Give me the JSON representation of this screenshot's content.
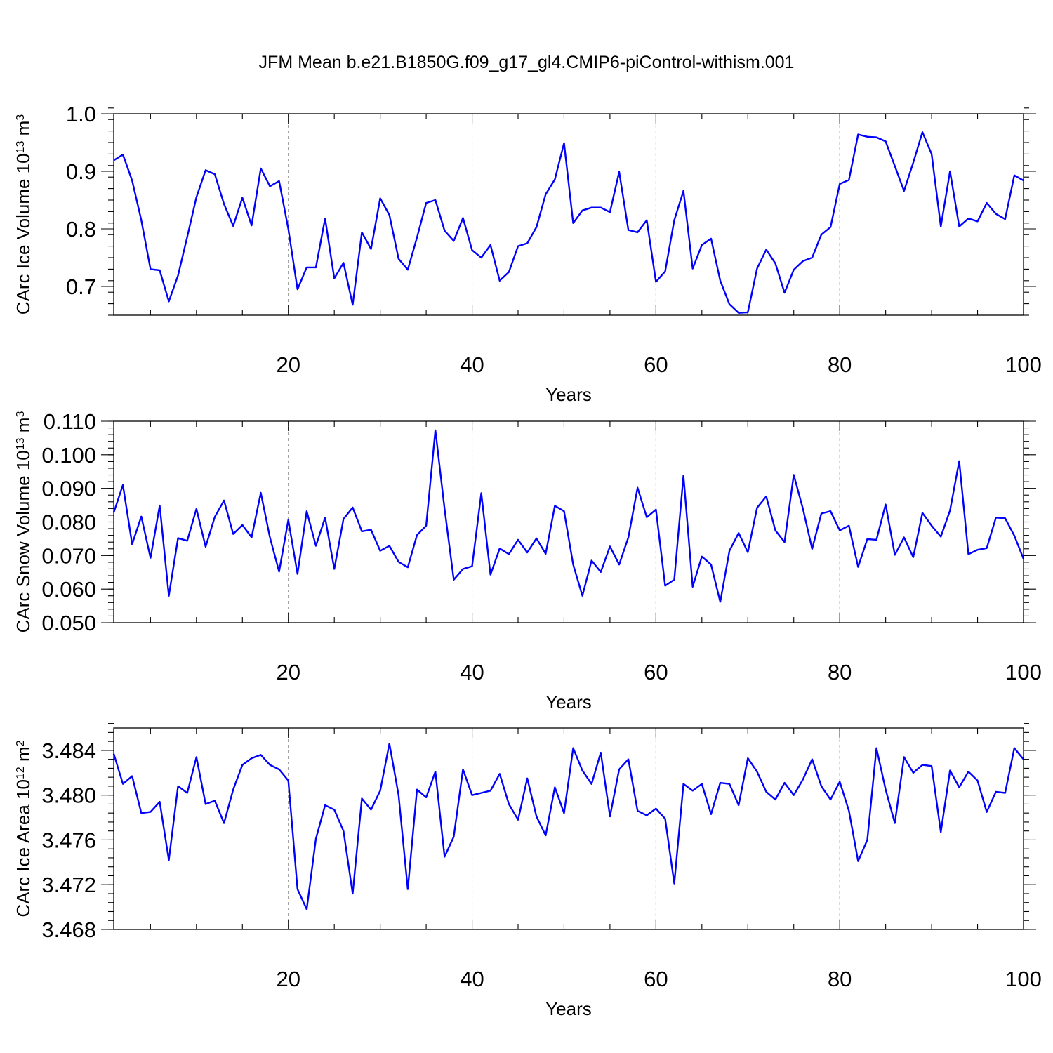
{
  "title": "JFM Mean b.e21.B1850G.f09_g17_gl4.CMIP6-piControl-withism.001",
  "chart_data": [
    {
      "type": "line",
      "xlabel": "Years",
      "ylabel": "CArc Ice Volume 10",
      "ylabel_exp": "13",
      "ylabel_unit": " m",
      "ylabel_unit_exp": "3",
      "xlim": [
        1,
        100
      ],
      "ylim": [
        0.65,
        1.0
      ],
      "xticks": [
        20,
        40,
        60,
        80,
        100
      ],
      "xtick_labels": [
        "20",
        "40",
        "60",
        "80",
        "100"
      ],
      "yticks": [
        0.7,
        0.8,
        0.9,
        1.0
      ],
      "ytick_labels": [
        "0.7",
        "0.8",
        "0.9",
        "1.0"
      ],
      "y_minor_step": 0.02,
      "grid": "vertical dashed at 20, 40, 60, 80",
      "color": "#0000ff",
      "x": [
        1,
        2,
        3,
        4,
        5,
        6,
        7,
        8,
        9,
        10,
        11,
        12,
        13,
        14,
        15,
        16,
        17,
        18,
        19,
        20,
        21,
        22,
        23,
        24,
        25,
        26,
        27,
        28,
        29,
        30,
        31,
        32,
        33,
        34,
        35,
        36,
        37,
        38,
        39,
        40,
        41,
        42,
        43,
        44,
        45,
        46,
        47,
        48,
        49,
        50,
        51,
        52,
        53,
        54,
        55,
        56,
        57,
        58,
        59,
        60,
        61,
        62,
        63,
        64,
        65,
        66,
        67,
        68,
        69,
        70,
        71,
        72,
        73,
        74,
        75,
        76,
        77,
        78,
        79,
        80,
        81,
        82,
        83,
        84,
        85,
        86,
        87,
        88,
        89,
        90,
        91,
        92,
        93,
        94,
        95,
        96,
        97,
        98,
        99,
        100
      ],
      "values": [
        0.919,
        0.929,
        0.884,
        0.815,
        0.73,
        0.728,
        0.674,
        0.719,
        0.786,
        0.855,
        0.902,
        0.895,
        0.843,
        0.805,
        0.854,
        0.806,
        0.905,
        0.874,
        0.883,
        0.8,
        0.695,
        0.733,
        0.733,
        0.818,
        0.714,
        0.741,
        0.668,
        0.794,
        0.765,
        0.853,
        0.824,
        0.748,
        0.729,
        0.785,
        0.845,
        0.85,
        0.797,
        0.779,
        0.819,
        0.763,
        0.75,
        0.772,
        0.71,
        0.725,
        0.77,
        0.775,
        0.803,
        0.86,
        0.886,
        0.949,
        0.81,
        0.832,
        0.837,
        0.837,
        0.829,
        0.899,
        0.798,
        0.794,
        0.815,
        0.708,
        0.726,
        0.815,
        0.866,
        0.731,
        0.772,
        0.783,
        0.71,
        0.669,
        0.654,
        0.655,
        0.731,
        0.764,
        0.74,
        0.689,
        0.729,
        0.744,
        0.75,
        0.79,
        0.803,
        0.878,
        0.885,
        0.964,
        0.96,
        0.959,
        0.952,
        0.909,
        0.866,
        0.915,
        0.968,
        0.93,
        0.804,
        0.9,
        0.804,
        0.818,
        0.813,
        0.845,
        0.826,
        0.817,
        0.893,
        0.884
      ]
    },
    {
      "type": "line",
      "xlabel": "Years",
      "ylabel": "CArc Snow Volume 10",
      "ylabel_exp": "13",
      "ylabel_unit": " m",
      "ylabel_unit_exp": "3",
      "xlim": [
        1,
        100
      ],
      "ylim": [
        0.05,
        0.11
      ],
      "xticks": [
        20,
        40,
        60,
        80,
        100
      ],
      "xtick_labels": [
        "20",
        "40",
        "60",
        "80",
        "100"
      ],
      "yticks": [
        0.05,
        0.06,
        0.07,
        0.08,
        0.09,
        0.1,
        0.11
      ],
      "ytick_labels": [
        "0.050",
        "0.060",
        "0.070",
        "0.080",
        "0.090",
        "0.100",
        "0.110"
      ],
      "y_minor_step": 0.002,
      "grid": "vertical dashed at 20, 40, 60, 80",
      "color": "#0000ff",
      "x": [
        1,
        2,
        3,
        4,
        5,
        6,
        7,
        8,
        9,
        10,
        11,
        12,
        13,
        14,
        15,
        16,
        17,
        18,
        19,
        20,
        21,
        22,
        23,
        24,
        25,
        26,
        27,
        28,
        29,
        30,
        31,
        32,
        33,
        34,
        35,
        36,
        37,
        38,
        39,
        40,
        41,
        42,
        43,
        44,
        45,
        46,
        47,
        48,
        49,
        50,
        51,
        52,
        53,
        54,
        55,
        56,
        57,
        58,
        59,
        60,
        61,
        62,
        63,
        64,
        65,
        66,
        67,
        68,
        69,
        70,
        71,
        72,
        73,
        74,
        75,
        76,
        77,
        78,
        79,
        80,
        81,
        82,
        83,
        84,
        85,
        86,
        87,
        88,
        89,
        90,
        91,
        92,
        93,
        94,
        95,
        96,
        97,
        98,
        99,
        100
      ],
      "values": [
        0.0828,
        0.091,
        0.0734,
        0.0816,
        0.0693,
        0.0849,
        0.058,
        0.0752,
        0.0744,
        0.0839,
        0.0726,
        0.0815,
        0.0864,
        0.0764,
        0.0791,
        0.0754,
        0.0887,
        0.0754,
        0.0652,
        0.0806,
        0.0645,
        0.0832,
        0.0729,
        0.0813,
        0.066,
        0.0809,
        0.0843,
        0.0772,
        0.0777,
        0.0714,
        0.0729,
        0.0681,
        0.0665,
        0.0761,
        0.0789,
        0.1073,
        0.0839,
        0.0628,
        0.066,
        0.0668,
        0.0886,
        0.0643,
        0.0721,
        0.0704,
        0.0747,
        0.0709,
        0.0751,
        0.0705,
        0.0848,
        0.0832,
        0.0673,
        0.058,
        0.0685,
        0.0651,
        0.0727,
        0.0673,
        0.0754,
        0.0902,
        0.0814,
        0.0837,
        0.061,
        0.0628,
        0.0938,
        0.0607,
        0.0697,
        0.0673,
        0.0562,
        0.0714,
        0.0767,
        0.071,
        0.0842,
        0.0876,
        0.0775,
        0.074,
        0.094,
        0.0839,
        0.072,
        0.0825,
        0.0832,
        0.0775,
        0.0789,
        0.0666,
        0.0749,
        0.0747,
        0.0852,
        0.0702,
        0.0754,
        0.0695,
        0.0827,
        0.0789,
        0.0756,
        0.0834,
        0.0981,
        0.0704,
        0.0717,
        0.0722,
        0.0813,
        0.0811,
        0.0759,
        0.069
      ]
    },
    {
      "type": "line",
      "xlabel": "Years",
      "ylabel": "CArc Ice Area 10",
      "ylabel_exp": "12",
      "ylabel_unit": " m",
      "ylabel_unit_exp": "2",
      "xlim": [
        1,
        100
      ],
      "ylim": [
        3.468,
        3.486
      ],
      "xticks": [
        20,
        40,
        60,
        80,
        100
      ],
      "xtick_labels": [
        "20",
        "40",
        "60",
        "80",
        "100"
      ],
      "yticks": [
        3.468,
        3.472,
        3.476,
        3.48,
        3.484
      ],
      "ytick_labels": [
        "3.468",
        "3.472",
        "3.476",
        "3.480",
        "3.484"
      ],
      "y_minor_step": 0.0008,
      "grid": "vertical dashed at 20, 40, 60, 80",
      "color": "#0000ff",
      "x": [
        1,
        2,
        3,
        4,
        5,
        6,
        7,
        8,
        9,
        10,
        11,
        12,
        13,
        14,
        15,
        16,
        17,
        18,
        19,
        20,
        21,
        22,
        23,
        24,
        25,
        26,
        27,
        28,
        29,
        30,
        31,
        32,
        33,
        34,
        35,
        36,
        37,
        38,
        39,
        40,
        41,
        42,
        43,
        44,
        45,
        46,
        47,
        48,
        49,
        50,
        51,
        52,
        53,
        54,
        55,
        56,
        57,
        58,
        59,
        60,
        61,
        62,
        63,
        64,
        65,
        66,
        67,
        68,
        69,
        70,
        71,
        72,
        73,
        74,
        75,
        76,
        77,
        78,
        79,
        80,
        81,
        82,
        83,
        84,
        85,
        86,
        87,
        88,
        89,
        90,
        91,
        92,
        93,
        94,
        95,
        96,
        97,
        98,
        99,
        100
      ],
      "values": [
        3.4837,
        3.481,
        3.4817,
        3.4784,
        3.4785,
        3.4794,
        3.4742,
        3.4808,
        3.4802,
        3.4834,
        3.4792,
        3.4795,
        3.4775,
        3.4805,
        3.4827,
        3.4833,
        3.4836,
        3.4827,
        3.4823,
        3.4813,
        3.4716,
        3.4698,
        3.4761,
        3.4791,
        3.4787,
        3.4768,
        3.4712,
        3.4797,
        3.4787,
        3.4804,
        3.4846,
        3.48,
        3.4716,
        3.4805,
        3.4798,
        3.4821,
        3.4745,
        3.4763,
        3.4823,
        3.48,
        3.4802,
        3.4804,
        3.4819,
        3.4792,
        3.4778,
        3.4815,
        3.4781,
        3.4764,
        3.4807,
        3.4784,
        3.4842,
        3.4822,
        3.481,
        3.4838,
        3.4781,
        3.4823,
        3.4832,
        3.4786,
        3.4782,
        3.4788,
        3.4779,
        3.4721,
        3.481,
        3.4804,
        3.481,
        3.4783,
        3.4811,
        3.481,
        3.4791,
        3.4833,
        3.4821,
        3.4803,
        3.4796,
        3.4811,
        3.48,
        3.4814,
        3.4832,
        3.4808,
        3.4796,
        3.4812,
        3.4786,
        3.4741,
        3.476,
        3.4842,
        3.4805,
        3.4775,
        3.4834,
        3.482,
        3.4827,
        3.4826,
        3.4767,
        3.4822,
        3.4807,
        3.4821,
        3.4813,
        3.4785,
        3.4803,
        3.4802,
        3.4842,
        3.4832
      ]
    }
  ]
}
